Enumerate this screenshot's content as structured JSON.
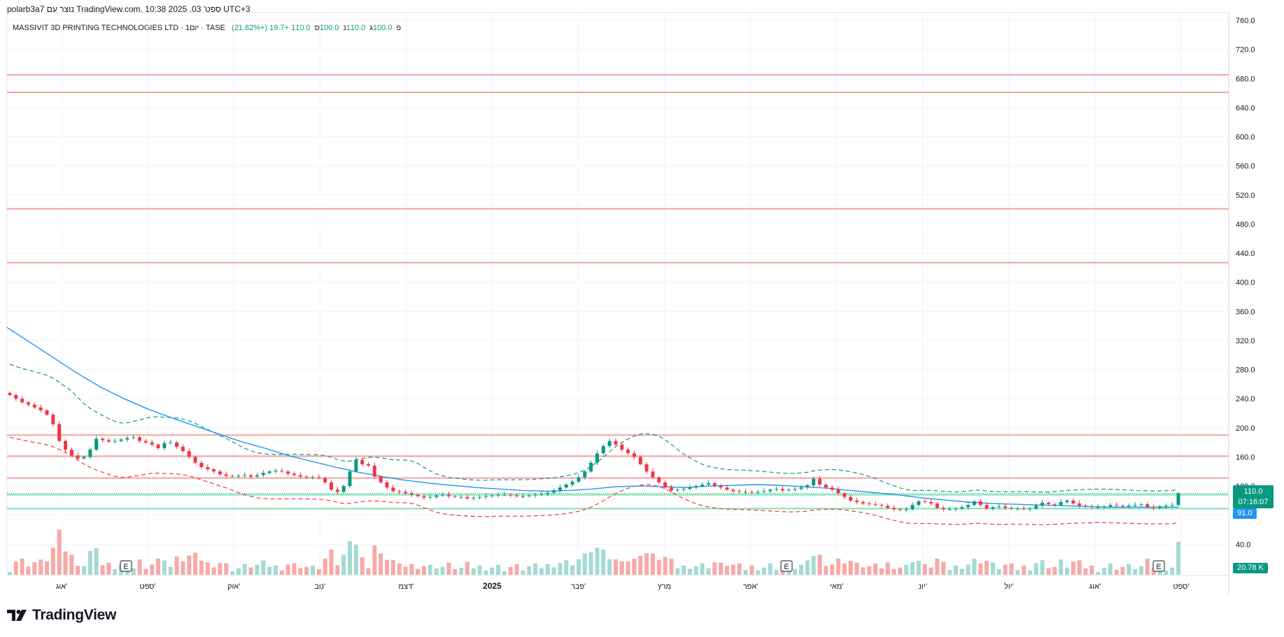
{
  "header": {
    "created_by": "polarb3a7 נוצר עם TradingView.com, 10:38 2025 ,03 'ספט UTC+3",
    "symbol": "MASSIVIT 3D PRINTING TECHNOLOGIES LTD · יום1 · TASE",
    "ohlc": [
      {
        "label": "פ",
        "value": "100.0"
      },
      {
        "label": "ג",
        "value": "110.0"
      },
      {
        "label": "נ",
        "value": "100.0"
      },
      {
        "label": "ס",
        "value": "110.0"
      }
    ],
    "change": "+19.7 (+21.82%)"
  },
  "price_tags": {
    "last_price": "110.0",
    "countdown": "07:16:07",
    "ma_value": "91.0",
    "volume": "20.78 K"
  },
  "earnings_marker": "E",
  "brand": {
    "name": "TradingView"
  },
  "colors": {
    "up": "#26a69a",
    "down": "#ef5350",
    "up_body": "#089981",
    "down_body": "#f23645",
    "ma": "#2196f3",
    "band": "#089981",
    "band_lower": "#f23645",
    "resistance": "#f7a1a1",
    "support": "#7ee2b3",
    "vol_up": "#a3dad4",
    "vol_down": "#f7a9a7"
  },
  "chart_data": {
    "type": "candlestick",
    "title": "MASSIVIT 3D PRINTING TECHNOLOGIES LTD",
    "y_axis": {
      "range": [
        0,
        760
      ],
      "ticks": [
        "40.0",
        "80.0",
        "120.0",
        "160.0",
        "200.0",
        "240.0",
        "280.0",
        "320.0",
        "360.0",
        "400.0",
        "440.0",
        "480.0",
        "520.0",
        "560.0",
        "600.0",
        "640.0",
        "680.0",
        "720.0",
        "760.0"
      ]
    },
    "x_axis": {
      "labels": [
        "אוג'",
        "ספט'",
        "אוק'",
        "נוב'",
        "דצמ'",
        "2025",
        "פבר'",
        "מרץ",
        "אפר'",
        "מאי'",
        "יונ'",
        "יול'",
        "אוג'",
        "ספט'"
      ],
      "bold_label": "2025"
    },
    "horizontal_lines": {
      "resistance": [
        685,
        661,
        501,
        427,
        190,
        161,
        131
      ],
      "support": [
        108,
        89
      ],
      "last_price_dotted": 110
    },
    "series": [
      {
        "name": "close",
        "values": [
          245,
          240,
          235,
          232,
          228,
          224,
          218,
          205,
          182,
          170,
          162,
          158,
          160,
          170,
          185,
          183,
          181,
          182,
          184,
          186,
          187,
          182,
          180,
          177,
          172,
          179,
          180,
          174,
          168,
          160,
          152,
          146,
          143,
          140,
          136,
          134,
          134,
          134,
          135,
          133,
          135,
          138,
          140,
          141,
          140,
          137,
          135,
          133,
          132,
          132,
          131,
          125,
          115,
          112,
          120,
          140,
          156,
          150,
          148,
          133,
          125,
          118,
          113,
          112,
          110,
          108,
          106,
          104,
          105,
          107,
          108,
          106,
          105,
          105,
          103,
          104,
          105,
          106,
          107,
          108,
          108,
          107,
          106,
          106,
          107,
          108,
          109,
          111,
          114,
          118,
          122,
          126,
          132,
          140,
          152,
          165,
          175,
          182,
          177,
          170,
          165,
          160,
          150,
          140,
          132,
          125,
          118,
          114,
          115,
          116,
          118,
          120,
          122,
          124,
          120,
          118,
          115,
          113,
          112,
          112,
          111,
          112,
          113,
          115,
          116,
          114,
          115,
          116,
          118,
          121,
          130,
          122,
          118,
          115,
          110,
          105,
          100,
          98,
          96,
          95,
          94,
          93,
          90,
          88,
          87,
          88,
          94,
          99,
          98,
          96,
          90,
          88,
          88,
          89,
          91,
          94,
          99,
          94,
          89,
          91,
          92,
          90,
          89,
          89,
          88,
          89,
          93,
          97,
          95,
          94,
          98,
          100,
          96,
          93,
          92,
          91,
          91,
          92,
          94,
          93,
          92,
          93,
          94,
          95,
          91,
          90,
          92,
          93,
          94,
          110
        ]
      },
      {
        "name": "moving_average",
        "values": [
          338,
          317,
          296,
          275,
          256,
          240,
          226,
          214,
          203,
          192,
          181,
          172,
          162,
          154,
          146,
          139,
          133,
          128,
          124,
          121,
          118,
          116,
          114,
          113,
          114,
          116,
          119,
          120,
          119,
          118,
          120,
          121,
          122,
          121,
          119,
          117,
          114,
          111,
          108,
          104,
          101,
          98,
          96,
          95,
          94,
          93,
          92,
          91,
          91,
          91,
          91
        ]
      }
    ],
    "volume": {
      "unit": "K",
      "last_value": "20.78 K"
    }
  }
}
